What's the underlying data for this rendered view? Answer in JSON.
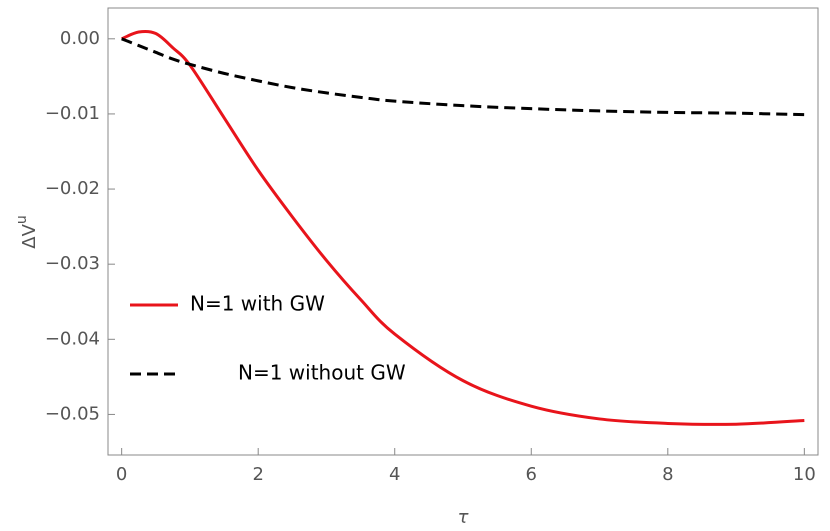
{
  "chart_data": {
    "type": "line",
    "xlabel": "τ",
    "ylabel": "ΔV",
    "ylabel_sup": "u",
    "x": [
      0,
      0.25,
      0.5,
      0.75,
      1,
      1.5,
      2,
      2.5,
      3,
      3.5,
      4,
      5,
      6,
      7,
      8,
      9,
      10
    ],
    "series": [
      {
        "name": "N=1 with GW",
        "color": "#e8141b",
        "dash": false,
        "values": [
          0,
          0.0009,
          0.0007,
          -0.0012,
          -0.0035,
          -0.0105,
          -0.0175,
          -0.0237,
          -0.0295,
          -0.0347,
          -0.0393,
          -0.0455,
          -0.0489,
          -0.0506,
          -0.0512,
          -0.0513,
          -0.0508
        ]
      },
      {
        "name": "N=1 without GW",
        "color": "#000000",
        "dash": true,
        "values": [
          0,
          -0.0009,
          -0.0018,
          -0.0027,
          -0.0034,
          -0.0046,
          -0.0056,
          -0.0065,
          -0.0072,
          -0.0078,
          -0.0083,
          -0.0089,
          -0.0093,
          -0.0096,
          -0.0098,
          -0.0099,
          -0.0101
        ]
      }
    ],
    "xlim": [
      -0.2,
      10.2
    ],
    "ylim": [
      -0.0554,
      0.0041
    ],
    "xticks": [
      0,
      2,
      4,
      6,
      8,
      10
    ],
    "yticks": [
      {
        "value": 0,
        "label": "0.00"
      },
      {
        "value": -0.01,
        "label": "−0.01"
      },
      {
        "value": -0.02,
        "label": "−0.02"
      },
      {
        "value": -0.03,
        "label": "−0.03"
      },
      {
        "value": -0.04,
        "label": "−0.04"
      },
      {
        "value": -0.05,
        "label": "−0.05"
      }
    ],
    "legend": "left"
  }
}
